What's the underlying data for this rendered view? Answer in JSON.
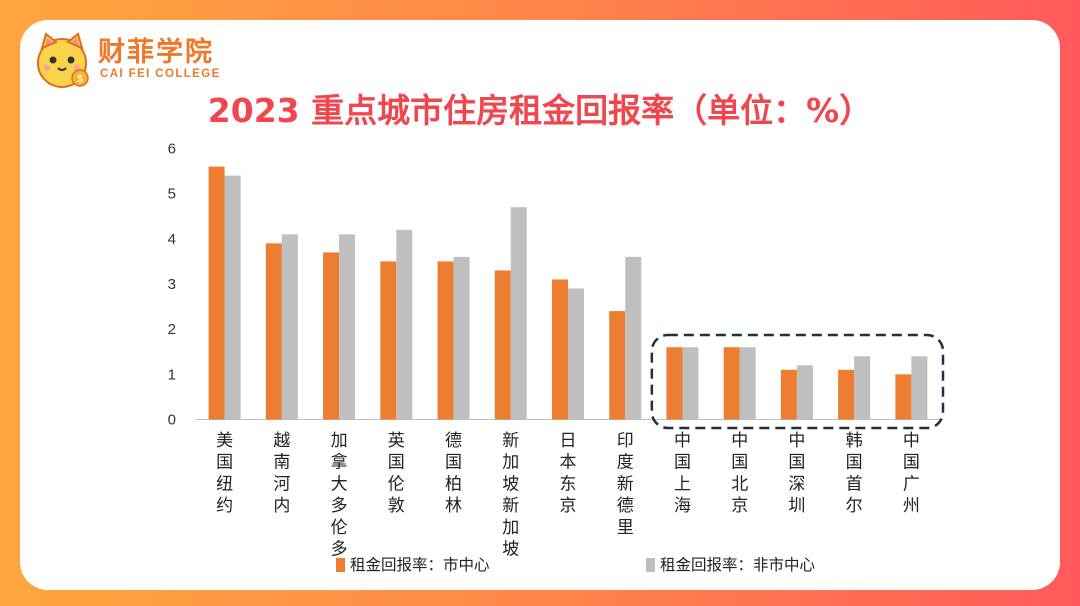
{
  "brand": {
    "name_cn": "财菲学院",
    "name_en": "CAI FEI COLLEGE",
    "icon": "cat-mascot-icon"
  },
  "colors": {
    "series1": "#ed7d31",
    "series2": "#bfbfbf",
    "title": "#f0474f",
    "highlight_box": "#203040"
  },
  "chart_data": {
    "type": "bar",
    "title": "2023 重点城市住房租金回报率（单位：%）",
    "categories": [
      "美国纽约",
      "越南河内",
      "加拿大多伦多",
      "英国伦敦",
      "德国柏林",
      "新加坡新加坡",
      "日本东京",
      "印度新德里",
      "中国上海",
      "中国北京",
      "中国深圳",
      "韩国首尔",
      "中国广州"
    ],
    "series": [
      {
        "name": "租金回报率：市中心",
        "values": [
          5.6,
          3.9,
          3.7,
          3.5,
          3.5,
          3.3,
          3.1,
          2.4,
          1.6,
          1.6,
          1.1,
          1.1,
          1.0
        ]
      },
      {
        "name": "租金回报率：非市中心",
        "values": [
          5.4,
          4.1,
          4.1,
          4.2,
          3.6,
          4.7,
          2.9,
          3.6,
          1.6,
          1.6,
          1.2,
          1.4,
          1.4
        ]
      }
    ],
    "yticks": [
      "0",
      "1",
      "2",
      "3",
      "4",
      "5",
      "6"
    ],
    "ylim": [
      0,
      6
    ],
    "grid": false,
    "legend_position": "bottom",
    "highlighted_categories": [
      "中国上海",
      "中国北京",
      "中国深圳",
      "韩国首尔",
      "中国广州"
    ]
  }
}
